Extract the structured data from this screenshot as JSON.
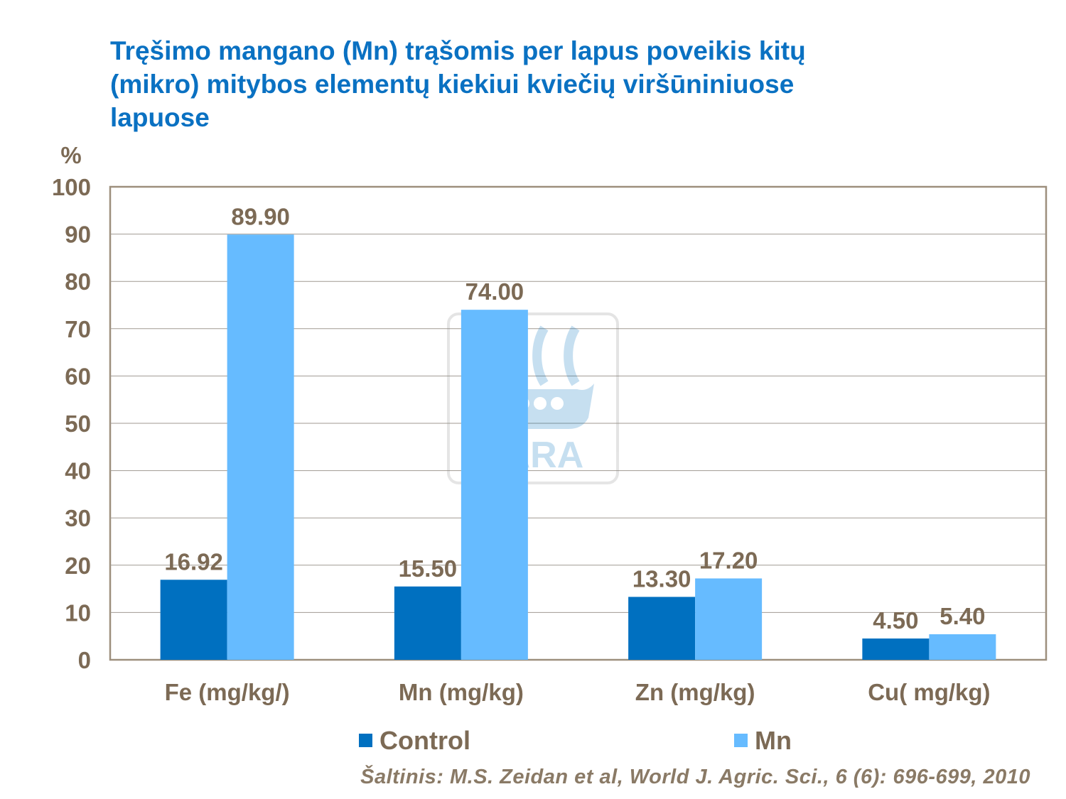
{
  "title_lines": [
    "Tręšimo mangano (Mn) trąšomis per lapus poveikis kitų",
    "(mikro) mitybos elementų kiekiui kviečių viršūniniuose",
    "lapuose"
  ],
  "watermark": "YARA",
  "source": "Šaltinis: M.S. Zeidan et al, World J. Agric. Sci., 6 (6): 696-699, 2010",
  "chart_data": {
    "type": "bar",
    "title": "Tręšimo mangano (Mn) trąšomis per lapus poveikis kitų (mikro) mitybos elementų kiekiui kviečių viršūniniuose lapuose",
    "ylabel": "%",
    "ylim": [
      0,
      100
    ],
    "yticks": [
      0,
      10,
      20,
      30,
      40,
      50,
      60,
      70,
      80,
      90,
      100
    ],
    "grid": true,
    "legend_position": "bottom",
    "categories": [
      "Fe (mg/kg/)",
      "Mn (mg/kg)",
      "Zn (mg/kg)",
      "Cu( mg/kg)"
    ],
    "series": [
      {
        "name": "Control",
        "color": "#0070c0",
        "values": [
          16.92,
          15.5,
          13.3,
          4.5
        ],
        "labels": [
          "16.92",
          "15.50",
          "13.30",
          "4.50"
        ]
      },
      {
        "name": "Mn",
        "color": "#66bbff",
        "values": [
          89.9,
          74.0,
          17.2,
          5.4
        ],
        "labels": [
          "89.90",
          "74.00",
          "17.20",
          "5.40"
        ]
      }
    ]
  }
}
